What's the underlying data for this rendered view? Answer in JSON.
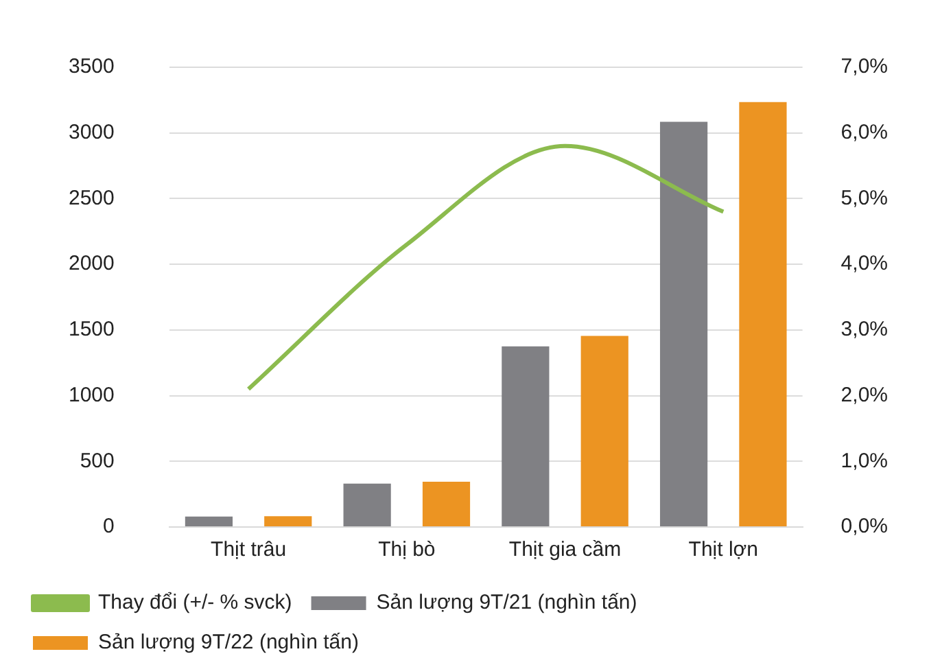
{
  "chart_data": {
    "type": "bar",
    "categories": [
      "Thịt trâu",
      "Thị bò",
      "Thịt gia cầm",
      "Thịt lợn"
    ],
    "series": [
      {
        "name": "Sản lượng 9T/21 (nghìn tấn)",
        "color": "#808084",
        "values": [
          80,
          330,
          1375,
          3085
        ]
      },
      {
        "name": "Sản lượng 9T/22 (nghìn tấn)",
        "color": "#ec9422",
        "values": [
          82,
          345,
          1455,
          3235
        ]
      },
      {
        "name": "Thay đổi (+/- % svck)",
        "type": "line",
        "axis": "y2",
        "color": "#8cbb4e",
        "values": [
          2.1,
          4.3,
          5.8,
          4.8
        ]
      }
    ],
    "ylim": [
      0,
      3500
    ],
    "yticks": [
      0,
      500,
      1000,
      1500,
      2000,
      2500,
      3000,
      3500
    ],
    "y2lim": [
      0,
      7
    ],
    "y2ticks": [
      {
        "value": 0,
        "label": "0,0%"
      },
      {
        "value": 1,
        "label": "1,0%"
      },
      {
        "value": 2,
        "label": "2,0%"
      },
      {
        "value": 3,
        "label": "3,0%"
      },
      {
        "value": 4,
        "label": "4,0%"
      },
      {
        "value": 5,
        "label": "5,0%"
      },
      {
        "value": 6,
        "label": "6,0%"
      },
      {
        "value": 7,
        "label": "7,0%"
      }
    ],
    "grid": "y",
    "legend": "bottom",
    "marker": "none"
  }
}
